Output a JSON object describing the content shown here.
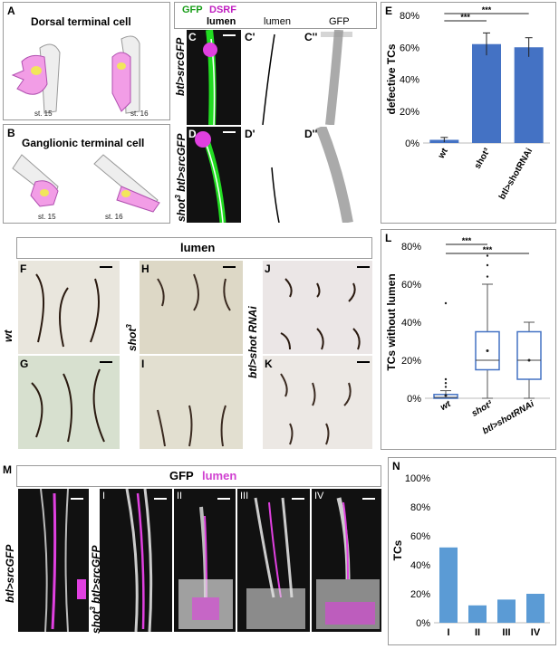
{
  "panelA": {
    "letter": "A",
    "title": "Dorsal terminal cell",
    "stage1": "st. 15",
    "stage2": "st. 16"
  },
  "panelB": {
    "letter": "B",
    "title": "Ganglionic terminal cell",
    "stage1": "st. 15",
    "stage2": "st. 16"
  },
  "panelC": {
    "header_gfp": "GFP",
    "header_dsrf": "DSRF",
    "col1": "lumen",
    "col2": "lumen",
    "col3": "GFP",
    "genotype_c": "btl>srcGFP",
    "genotype_d_prefix": "shot",
    "genotype_d_sup": "3",
    "genotype_d_suffix": " btl>srcGFP",
    "labels": [
      "C",
      "C'",
      "C''",
      "D",
      "D'",
      "D''"
    ]
  },
  "panelF": {
    "header": "lumen",
    "labels": [
      "F",
      "G",
      "H",
      "I",
      "J",
      "K"
    ],
    "row_wt": "wt",
    "row_shot": "shot",
    "row_shot_sup": "3",
    "row_rnai": "btl>shot RNAi"
  },
  "panelM": {
    "letter": "M",
    "header_gfp": "GFP",
    "header_lumen": "lumen",
    "genotype1": "btl>srcGFP",
    "genotype2_prefix": "shot",
    "genotype2_sup": "3",
    "genotype2_suffix": " btl>srcGFP",
    "roman": [
      "I",
      "II",
      "III",
      "IV"
    ]
  },
  "colors": {
    "bar": "#4472c4",
    "magenta": "#e040e0",
    "green": "#22dd22"
  },
  "chart_data": [
    {
      "id": "E",
      "type": "bar",
      "ylabel": "defective TCs",
      "yticks": [
        "0%",
        "20%",
        "40%",
        "60%",
        "80%"
      ],
      "ylim": [
        0,
        80
      ],
      "categories": [
        "wt",
        "shot³",
        "btl>shotRNAi"
      ],
      "values": [
        2,
        62,
        60
      ],
      "errors": [
        1.5,
        7,
        6
      ],
      "significance": [
        "***",
        "***"
      ]
    },
    {
      "id": "L",
      "type": "box",
      "ylabel": "TCs without lumen",
      "yticks": [
        "0%",
        "20%",
        "40%",
        "60%",
        "80%"
      ],
      "ylim": [
        0,
        80
      ],
      "categories": [
        "wt",
        "shot³",
        "btl>shotRNAi"
      ],
      "boxes": [
        {
          "min": 0,
          "q1": 0,
          "median": 0.5,
          "q3": 2,
          "max": 4,
          "mean": 1.5,
          "outliers": [
            6,
            8,
            10,
            50
          ]
        },
        {
          "min": 0,
          "q1": 15,
          "median": 20,
          "q3": 35,
          "max": 60,
          "mean": 25,
          "outliers": [
            64,
            70,
            75
          ]
        },
        {
          "min": 0,
          "q1": 10,
          "median": 20,
          "q3": 35,
          "max": 40,
          "mean": 20,
          "outliers": []
        }
      ],
      "significance": [
        "***",
        "***"
      ]
    },
    {
      "id": "N",
      "type": "bar",
      "ylabel": "TCs",
      "yticks": [
        "0%",
        "20%",
        "40%",
        "60%",
        "80%",
        "100%"
      ],
      "ylim": [
        0,
        100
      ],
      "categories": [
        "I",
        "II",
        "III",
        "IV"
      ],
      "values": [
        52,
        12,
        16,
        20
      ]
    }
  ]
}
